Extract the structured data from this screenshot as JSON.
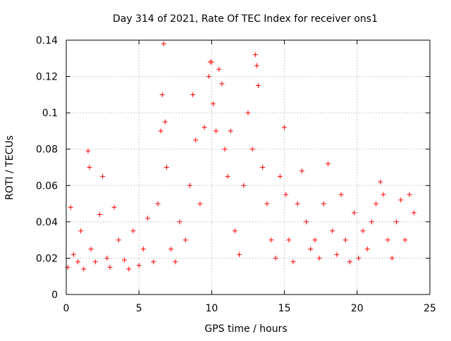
{
  "chart_data": {
    "type": "scatter",
    "title": "Day 314 of 2021, Rate Of TEC Index for receiver ons1",
    "xlabel": "GPS time / hours",
    "ylabel": "ROTI / TECUs",
    "xlim": [
      0,
      25
    ],
    "ylim": [
      0,
      0.14
    ],
    "xticks": [
      0,
      5,
      10,
      15,
      20,
      25
    ],
    "xtick_labels": [
      "0",
      "5",
      "10",
      "15",
      "20",
      "25"
    ],
    "yticks": [
      0,
      0.02,
      0.04,
      0.06,
      0.08,
      0.1,
      0.12,
      0.14
    ],
    "ytick_labels": [
      "0",
      "0.02",
      "0.04",
      "0.06",
      "0.08",
      "0.1",
      "0.12",
      "0.14"
    ],
    "grid": true,
    "marker": "plus",
    "marker_color": "#ff0000",
    "series": [
      {
        "name": "ROTI",
        "x": [
          0.1,
          0.3,
          0.5,
          0.8,
          1.0,
          1.2,
          1.5,
          1.6,
          1.7,
          2.0,
          2.3,
          2.5,
          2.8,
          3.0,
          3.3,
          3.6,
          4.0,
          4.3,
          4.6,
          5.0,
          5.3,
          5.6,
          6.0,
          6.3,
          6.5,
          6.6,
          6.7,
          6.8,
          6.9,
          7.2,
          7.5,
          7.8,
          8.2,
          8.5,
          8.7,
          8.9,
          9.2,
          9.5,
          9.8,
          9.9,
          10.0,
          10.1,
          10.3,
          10.5,
          10.7,
          10.9,
          11.1,
          11.3,
          11.6,
          11.9,
          12.2,
          12.5,
          12.8,
          13.0,
          13.1,
          13.2,
          13.5,
          13.8,
          14.1,
          14.4,
          14.7,
          15.0,
          15.1,
          15.3,
          15.6,
          15.9,
          16.2,
          16.5,
          16.8,
          17.1,
          17.4,
          17.7,
          18.0,
          18.3,
          18.6,
          18.9,
          19.2,
          19.5,
          19.8,
          20.1,
          20.4,
          20.7,
          21.0,
          21.3,
          21.6,
          21.8,
          22.1,
          22.4,
          22.7,
          23.0,
          23.3,
          23.6,
          23.9
        ],
        "y": [
          0.015,
          0.048,
          0.022,
          0.018,
          0.035,
          0.014,
          0.079,
          0.07,
          0.025,
          0.018,
          0.044,
          0.065,
          0.02,
          0.015,
          0.048,
          0.03,
          0.019,
          0.014,
          0.035,
          0.016,
          0.025,
          0.042,
          0.018,
          0.05,
          0.09,
          0.11,
          0.138,
          0.095,
          0.07,
          0.025,
          0.018,
          0.04,
          0.03,
          0.06,
          0.11,
          0.085,
          0.05,
          0.092,
          0.12,
          0.128,
          0.128,
          0.105,
          0.09,
          0.124,
          0.116,
          0.08,
          0.065,
          0.09,
          0.035,
          0.022,
          0.06,
          0.1,
          0.08,
          0.132,
          0.126,
          0.115,
          0.07,
          0.05,
          0.03,
          0.02,
          0.065,
          0.092,
          0.055,
          0.03,
          0.018,
          0.05,
          0.068,
          0.04,
          0.025,
          0.03,
          0.02,
          0.05,
          0.072,
          0.035,
          0.022,
          0.055,
          0.03,
          0.018,
          0.045,
          0.02,
          0.035,
          0.025,
          0.04,
          0.05,
          0.062,
          0.055,
          0.03,
          0.02,
          0.04,
          0.052,
          0.03,
          0.055,
          0.045
        ]
      }
    ]
  }
}
